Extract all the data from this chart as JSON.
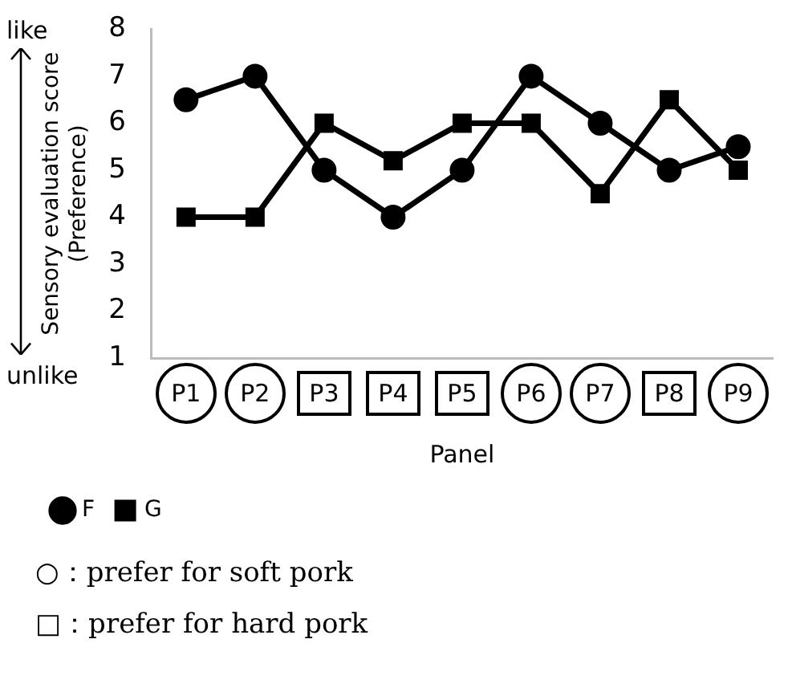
{
  "chart_data": {
    "type": "line",
    "xlabel": "Panel",
    "ylabel": "Sensory evaluation score\n(Preference)",
    "categories": [
      "P1",
      "P2",
      "P3",
      "P4",
      "P5",
      "P6",
      "P7",
      "P8",
      "P9"
    ],
    "series": [
      {
        "name": "F",
        "color": "#000000",
        "marker": "circle",
        "values": [
          6.5,
          7,
          5,
          4,
          5,
          7,
          6,
          5,
          5.5
        ]
      },
      {
        "name": "G",
        "color": "#000000",
        "marker": "square",
        "values": [
          4,
          4,
          6,
          5.2,
          6,
          6,
          4.5,
          6.5,
          5
        ]
      }
    ],
    "ylim": [
      1,
      8
    ],
    "yticks": [
      1,
      2,
      3,
      4,
      5,
      6,
      7,
      8
    ],
    "grid": false,
    "legend": "bottom left",
    "line_style": "solid",
    "annotations": [
      "like",
      "unlike",
      "○：prefer for soft pork",
      "□：prefer for hard pork"
    ]
  }
}
